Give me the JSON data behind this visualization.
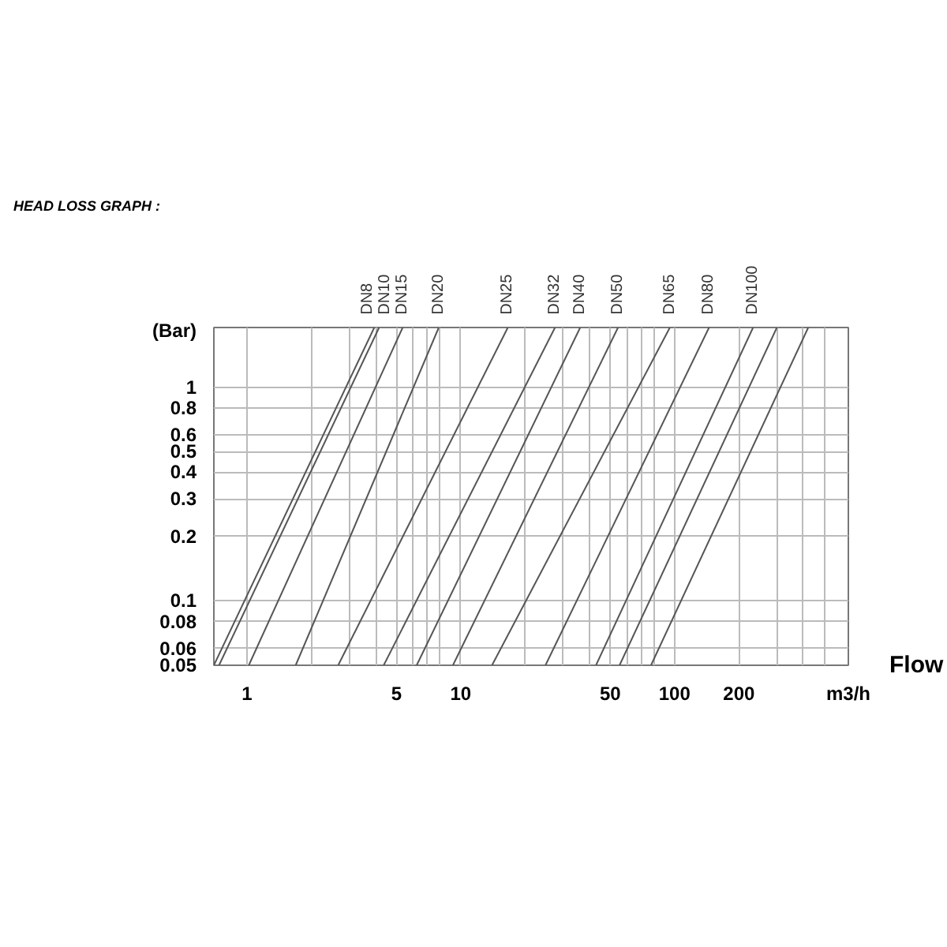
{
  "chart_data": {
    "type": "line",
    "title": "HEAD LOSS GRAPH :",
    "xlabel": "Flow",
    "ylabel": "(Bar)",
    "annotations": [
      "m3/h"
    ],
    "log": "xy",
    "grid": true,
    "xlim": [
      0.7,
      650
    ],
    "ylim": [
      0.05,
      1.9
    ],
    "xticks": [
      1,
      {
        "value": 2,
        "label": null
      },
      {
        "value": 3,
        "label": null
      },
      {
        "value": 4,
        "label": null
      },
      5,
      {
        "value": 6,
        "label": null
      },
      {
        "value": 7,
        "label": null
      },
      {
        "value": 8,
        "label": null
      },
      10,
      {
        "value": 20,
        "label": null
      },
      {
        "value": 30,
        "label": null
      },
      {
        "value": 40,
        "label": null
      },
      50,
      {
        "value": 60,
        "label": null
      },
      {
        "value": 70,
        "label": null
      },
      {
        "value": 80,
        "label": null
      },
      100,
      200,
      {
        "value": 300,
        "label": null
      },
      {
        "value": 400,
        "label": null
      },
      {
        "value": 500,
        "label": null
      }
    ],
    "yticks": [
      0.05,
      0.06,
      0.08,
      0.1,
      0.2,
      0.3,
      0.4,
      0.5,
      0.6,
      0.8,
      1
    ],
    "series": [
      {
        "name": "DN8",
        "color": "#555555",
        "x": [
          0.7,
          3.94
        ],
        "values": [
          0.05,
          1.9
        ]
      },
      {
        "name": "DN10",
        "color": "#555555",
        "x": [
          0.74,
          4.15
        ],
        "values": [
          0.05,
          1.9
        ]
      },
      {
        "name": "DN15",
        "color": "#555555",
        "x": [
          1.02,
          5.35
        ],
        "values": [
          0.05,
          1.9
        ]
      },
      {
        "name": "DN20",
        "color": "#555555",
        "x": [
          1.69,
          7.89
        ],
        "values": [
          0.05,
          1.9
        ]
      },
      {
        "name": "DN25",
        "color": "#555555",
        "x": [
          2.67,
          16.6
        ],
        "values": [
          0.05,
          1.9
        ]
      },
      {
        "name": "DN32",
        "color": "#555555",
        "x": [
          4.36,
          27.6
        ],
        "values": [
          0.05,
          1.9
        ]
      },
      {
        "name": "DN40",
        "color": "#555555",
        "x": [
          6.22,
          36.2
        ],
        "values": [
          0.05,
          1.9
        ]
      },
      {
        "name": "DN50",
        "color": "#555555",
        "x": [
          9.19,
          54.4
        ],
        "values": [
          0.05,
          1.9
        ]
      },
      {
        "name": "DN65",
        "color": "#555555",
        "x": [
          14.0,
          95.1
        ],
        "values": [
          0.05,
          1.9
        ]
      },
      {
        "name": "DN80",
        "color": "#555555",
        "x": [
          24.9,
          145
        ],
        "values": [
          0.05,
          1.9
        ]
      },
      {
        "name": "DN100",
        "color": "#555555",
        "x": [
          42.9,
          233
        ],
        "values": [
          0.05,
          1.9
        ]
      },
      {
        "color": "#555555",
        "x": [
          55.3,
          301
        ],
        "values": [
          0.05,
          1.9
        ]
      },
      {
        "color": "#555555",
        "x": [
          77.6,
          422
        ],
        "values": [
          0.05,
          1.9
        ]
      }
    ]
  }
}
